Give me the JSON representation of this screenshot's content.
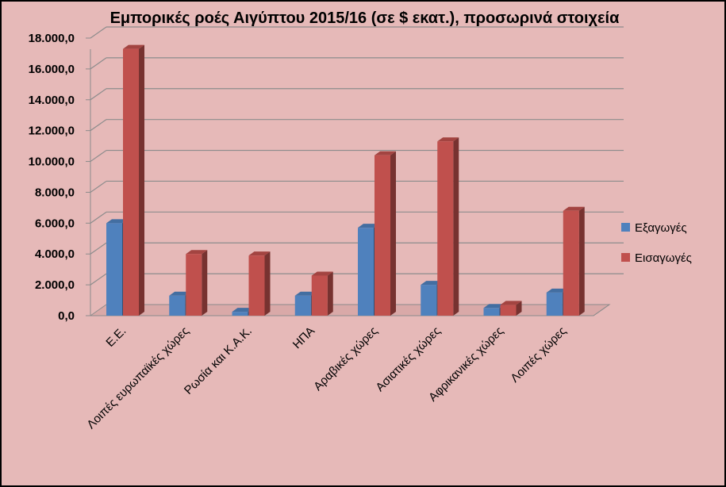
{
  "chart_data": {
    "type": "bar",
    "title": "Εμπορικές ροές Αιγύπτου 2015/16 (σε $ εκατ.), προσωρινά στοιχεία",
    "categories": [
      "Ε.Ε.",
      "Λοιπές ευρωπαϊκές χώρες",
      "Ρωσία και Κ.Α.Κ.",
      "ΗΠΑ",
      "Αραβικές χώρες",
      "Ασιατικές χώρες",
      "Αφρικανικές χώρες",
      "Λοιπές χώρες"
    ],
    "series": [
      {
        "name": "Εξαγωγές",
        "color": "#4f81bd",
        "values": [
          6000,
          1300,
          250,
          1300,
          5700,
          2000,
          500,
          1500
        ]
      },
      {
        "name": "Εισαγωγές",
        "color": "#c0504d",
        "values": [
          17300,
          4000,
          3900,
          2600,
          10400,
          11300,
          700,
          6800
        ]
      }
    ],
    "y_ticks": [
      "0,0",
      "2.000,0",
      "4.000,0",
      "6.000,0",
      "8.000,0",
      "10.000,0",
      "12.000,0",
      "14.000,0",
      "16.000,0",
      "18.000,0"
    ],
    "ylim": [
      0,
      18000
    ],
    "grid": true,
    "legend_position": "right"
  }
}
